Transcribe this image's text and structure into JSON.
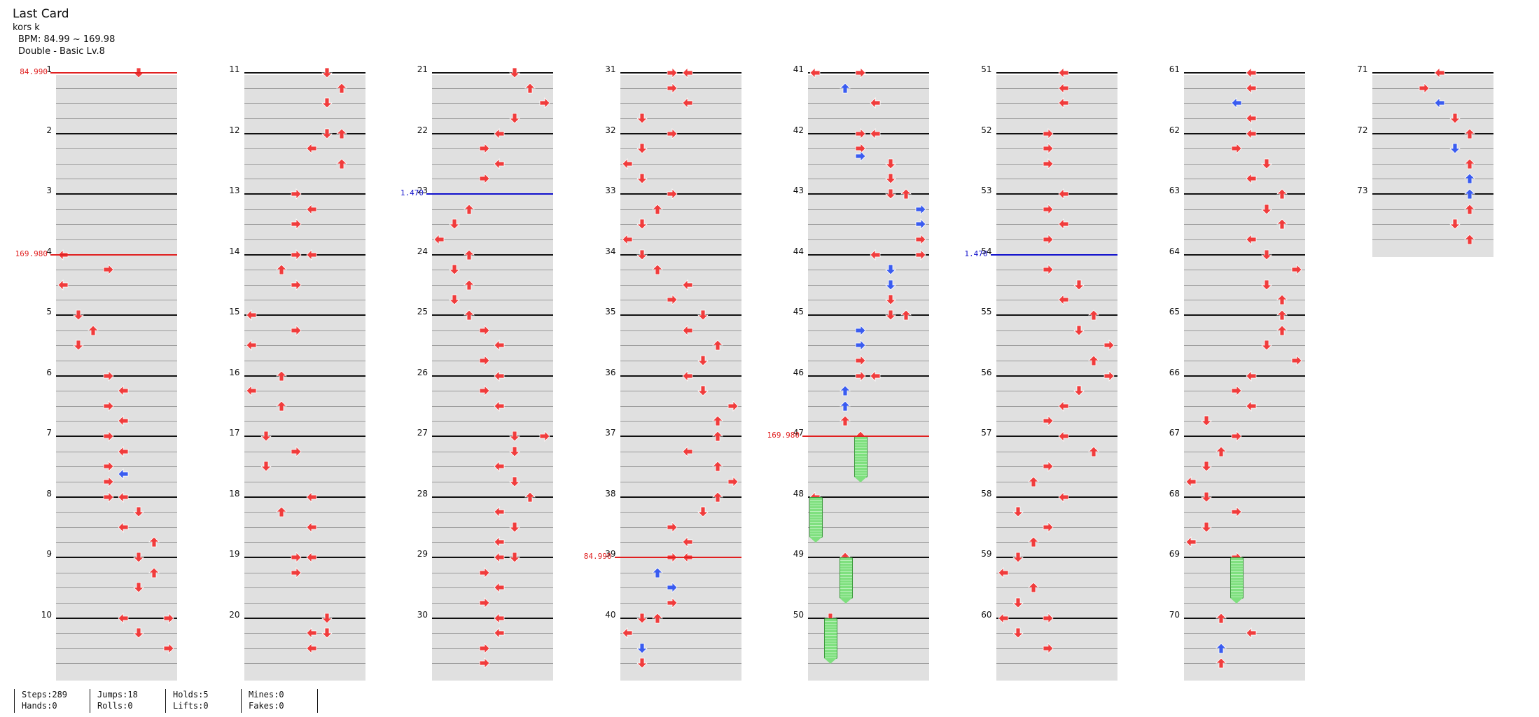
{
  "song": {
    "title": "Last Card",
    "artist": "kors k",
    "bpm": "BPM: 84.99 ~ 169.98",
    "chart": "Double - Basic  Lv.8"
  },
  "stats": [
    {
      "l1": "Steps:289",
      "l2": "Hands:0"
    },
    {
      "l1": "Jumps:18",
      "l2": "Rolls:0"
    },
    {
      "l1": "Holds:5",
      "l2": "Lifts:0"
    },
    {
      "l1": "Mines:0",
      "l2": "Fakes:0"
    }
  ],
  "columns": [
    {
      "start": 1,
      "count": 10
    },
    {
      "start": 11,
      "count": 10
    },
    {
      "start": 21,
      "count": 10
    },
    {
      "start": 31,
      "count": 10
    },
    {
      "start": 41,
      "count": 10
    },
    {
      "start": 51,
      "count": 10
    },
    {
      "start": 61,
      "count": 10
    },
    {
      "start": 71,
      "count": 3
    }
  ],
  "colors": {
    "red_arrow": "#f03c3c",
    "blue_arrow": "#3a5cf0",
    "hold": "#7fe07f",
    "bpm_red": "#e02020",
    "bpm_blue": "#1010cc"
  },
  "bpm_changes": [
    {
      "measure": 1,
      "value": "84.990",
      "color": "red"
    },
    {
      "measure": 4,
      "value": "169.980",
      "color": "red"
    },
    {
      "measure": 23,
      "value": "1.470",
      "color": "blue"
    },
    {
      "measure": 39,
      "value": "84.990",
      "color": "red"
    },
    {
      "measure": 47,
      "value": "169.980",
      "color": "red"
    },
    {
      "measure": 54,
      "value": "1.470",
      "color": "blue"
    }
  ],
  "notes": [
    [
      1,
      0,
      5,
      "d"
    ],
    [
      4,
      0,
      0,
      "l"
    ],
    [
      4,
      0.25,
      3,
      "r"
    ],
    [
      4,
      0.5,
      0,
      "l"
    ],
    [
      5,
      0,
      1,
      "d"
    ],
    [
      5,
      0.25,
      2,
      "u"
    ],
    [
      5,
      0.5,
      1,
      "d"
    ],
    [
      6,
      0,
      3,
      "r"
    ],
    [
      6,
      0.25,
      4,
      "l"
    ],
    [
      6,
      0.5,
      3,
      "r"
    ],
    [
      6,
      0.75,
      4,
      "l"
    ],
    [
      7,
      0,
      3,
      "r"
    ],
    [
      7,
      0.25,
      4,
      "l"
    ],
    [
      7,
      0.5,
      3,
      "r"
    ],
    [
      7,
      0.625,
      4,
      "l",
      "b"
    ],
    [
      7,
      0.75,
      3,
      "r"
    ],
    [
      8,
      0,
      3,
      "r"
    ],
    [
      8,
      0,
      4,
      "l"
    ],
    [
      8,
      0.25,
      5,
      "d"
    ],
    [
      8,
      0.5,
      4,
      "l"
    ],
    [
      8,
      0.75,
      6,
      "u"
    ],
    [
      9,
      0,
      5,
      "d"
    ],
    [
      9,
      0.25,
      6,
      "u"
    ],
    [
      9,
      0.5,
      5,
      "d"
    ],
    [
      10,
      0,
      4,
      "l"
    ],
    [
      10,
      0,
      7,
      "r"
    ],
    [
      10,
      0.25,
      5,
      "d"
    ],
    [
      10,
      0.5,
      7,
      "r"
    ],
    [
      11,
      0,
      5,
      "d"
    ],
    [
      11,
      0.25,
      6,
      "u"
    ],
    [
      11,
      0.5,
      5,
      "d"
    ],
    [
      12,
      0,
      5,
      "d"
    ],
    [
      12,
      0,
      6,
      "u"
    ],
    [
      12,
      0.25,
      4,
      "l"
    ],
    [
      12,
      0.5,
      6,
      "u"
    ],
    [
      13,
      0,
      3,
      "r"
    ],
    [
      13,
      0.25,
      4,
      "l"
    ],
    [
      13,
      0.5,
      3,
      "r"
    ],
    [
      14,
      0,
      3,
      "r"
    ],
    [
      14,
      0,
      4,
      "l"
    ],
    [
      14,
      0.25,
      2,
      "u"
    ],
    [
      14,
      0.5,
      3,
      "r"
    ],
    [
      15,
      0,
      0,
      "l"
    ],
    [
      15,
      0.25,
      3,
      "r"
    ],
    [
      15,
      0.5,
      0,
      "l"
    ],
    [
      16,
      0,
      2,
      "u"
    ],
    [
      16,
      0.25,
      0,
      "l"
    ],
    [
      16,
      0.5,
      2,
      "u"
    ],
    [
      17,
      0,
      1,
      "d"
    ],
    [
      17,
      0.25,
      3,
      "r"
    ],
    [
      17,
      0.5,
      1,
      "d"
    ],
    [
      18,
      0,
      4,
      "l"
    ],
    [
      18,
      0.25,
      2,
      "u"
    ],
    [
      18,
      0.5,
      4,
      "l"
    ],
    [
      19,
      0,
      3,
      "r"
    ],
    [
      19,
      0,
      4,
      "l"
    ],
    [
      19,
      0.25,
      3,
      "r"
    ],
    [
      20,
      0,
      5,
      "d"
    ],
    [
      20,
      0.25,
      4,
      "l"
    ],
    [
      20,
      0.5,
      4,
      "l"
    ],
    [
      20,
      0.25,
      5,
      "d"
    ],
    [
      21,
      0,
      5,
      "d"
    ],
    [
      21,
      0.25,
      6,
      "u"
    ],
    [
      21,
      0.5,
      7,
      "r"
    ],
    [
      21,
      0.75,
      5,
      "d"
    ],
    [
      22,
      0,
      4,
      "l"
    ],
    [
      22,
      0.25,
      3,
      "r"
    ],
    [
      22,
      0.5,
      4,
      "l"
    ],
    [
      22,
      0.75,
      3,
      "r"
    ],
    [
      23,
      0.25,
      2,
      "u"
    ],
    [
      23,
      0.5,
      1,
      "d"
    ],
    [
      23,
      0.75,
      0,
      "l"
    ],
    [
      24,
      0,
      2,
      "u"
    ],
    [
      24,
      0.25,
      1,
      "d"
    ],
    [
      24,
      0.5,
      2,
      "u"
    ],
    [
      24,
      0.75,
      1,
      "d"
    ],
    [
      25,
      0,
      2,
      "u"
    ],
    [
      25,
      0.25,
      3,
      "r"
    ],
    [
      25,
      0.5,
      4,
      "l"
    ],
    [
      25,
      0.75,
      3,
      "r"
    ],
    [
      26,
      0,
      4,
      "l"
    ],
    [
      26,
      0.25,
      3,
      "r"
    ],
    [
      26,
      0.5,
      4,
      "l"
    ],
    [
      27,
      0,
      5,
      "d"
    ],
    [
      27,
      0,
      7,
      "r"
    ],
    [
      27,
      0.25,
      5,
      "d"
    ],
    [
      27,
      0.5,
      4,
      "l"
    ],
    [
      27,
      0.75,
      5,
      "d"
    ],
    [
      28,
      0,
      6,
      "u"
    ],
    [
      28,
      0.25,
      4,
      "l"
    ],
    [
      28,
      0.5,
      5,
      "d"
    ],
    [
      28,
      0.75,
      4,
      "l"
    ],
    [
      29,
      0,
      5,
      "d"
    ],
    [
      29,
      0,
      4,
      "l"
    ],
    [
      29,
      0.25,
      3,
      "r"
    ],
    [
      29,
      0.5,
      4,
      "l"
    ],
    [
      29,
      0.75,
      3,
      "r"
    ],
    [
      30,
      0,
      4,
      "l"
    ],
    [
      30,
      0.25,
      4,
      "l"
    ],
    [
      30,
      0.5,
      3,
      "r"
    ],
    [
      30,
      0.75,
      3,
      "r"
    ],
    [
      31,
      0,
      3,
      "r"
    ],
    [
      31,
      0,
      4,
      "l"
    ],
    [
      31,
      0.25,
      3,
      "r"
    ],
    [
      31,
      0.5,
      4,
      "l"
    ],
    [
      31,
      0.75,
      1,
      "d"
    ],
    [
      32,
      0,
      3,
      "r"
    ],
    [
      32,
      0.25,
      1,
      "d"
    ],
    [
      32,
      0.5,
      0,
      "l"
    ],
    [
      32,
      0.75,
      1,
      "d"
    ],
    [
      33,
      0,
      3,
      "r"
    ],
    [
      33,
      0.25,
      2,
      "u"
    ],
    [
      33,
      0.5,
      1,
      "d"
    ],
    [
      33,
      0.75,
      0,
      "l"
    ],
    [
      34,
      0,
      1,
      "d"
    ],
    [
      34,
      0.25,
      2,
      "u"
    ],
    [
      34,
      0.5,
      4,
      "l",
      "b"
    ],
    [
      34,
      0.5,
      4,
      "l"
    ],
    [
      34,
      0.75,
      3,
      "r"
    ],
    [
      35,
      0,
      5,
      "d"
    ],
    [
      35,
      0.25,
      4,
      "l"
    ],
    [
      35,
      0.5,
      6,
      "u"
    ],
    [
      35,
      0.75,
      5,
      "d"
    ],
    [
      36,
      0,
      4,
      "l"
    ],
    [
      36,
      0.25,
      5,
      "d"
    ],
    [
      36,
      0.5,
      7,
      "r"
    ],
    [
      36,
      0.75,
      6,
      "u"
    ],
    [
      37,
      0,
      6,
      "u"
    ],
    [
      37,
      0.25,
      4,
      "l"
    ],
    [
      37,
      0.5,
      6,
      "u"
    ],
    [
      37,
      0.75,
      7,
      "r"
    ],
    [
      38,
      0,
      6,
      "u"
    ],
    [
      38,
      0.25,
      5,
      "d"
    ],
    [
      38,
      0.5,
      3,
      "r"
    ],
    [
      38,
      0.75,
      4,
      "l"
    ],
    [
      39,
      0,
      3,
      "r"
    ],
    [
      39,
      0,
      4,
      "l"
    ],
    [
      39,
      0.25,
      2,
      "u",
      "b"
    ],
    [
      39,
      0.5,
      3,
      "r",
      "b"
    ],
    [
      39,
      0.75,
      3,
      "r"
    ],
    [
      40,
      0,
      1,
      "d"
    ],
    [
      40,
      0,
      2,
      "u"
    ],
    [
      40,
      0.25,
      0,
      "l"
    ],
    [
      40,
      0.5,
      1,
      "d",
      "b"
    ],
    [
      40,
      0.75,
      1,
      "d"
    ],
    [
      41,
      0,
      0,
      "l"
    ],
    [
      41,
      0,
      3,
      "r"
    ],
    [
      41,
      0.25,
      2,
      "u",
      "b"
    ],
    [
      41,
      0.5,
      4,
      "l",
      "b"
    ],
    [
      41,
      0.5,
      4,
      "l"
    ],
    [
      42,
      0,
      3,
      "r"
    ],
    [
      42,
      0,
      4,
      "l"
    ],
    [
      42,
      0.25,
      3,
      "r"
    ],
    [
      42,
      0.375,
      3,
      "r",
      "b"
    ],
    [
      42,
      0.5,
      5,
      "d"
    ],
    [
      42,
      0.75,
      5,
      "d"
    ],
    [
      43,
      0,
      5,
      "d"
    ],
    [
      43,
      0,
      6,
      "u"
    ],
    [
      43,
      0.25,
      7,
      "r",
      "b"
    ],
    [
      43,
      0.5,
      7,
      "r",
      "b"
    ],
    [
      43,
      0.75,
      7,
      "r"
    ],
    [
      44,
      0,
      4,
      "l"
    ],
    [
      44,
      0,
      7,
      "r"
    ],
    [
      44,
      0.25,
      5,
      "d",
      "b"
    ],
    [
      44,
      0.5,
      5,
      "d",
      "b"
    ],
    [
      44,
      0.75,
      5,
      "d"
    ],
    [
      45,
      0,
      5,
      "d"
    ],
    [
      45,
      0,
      6,
      "u"
    ],
    [
      45,
      0.25,
      3,
      "r",
      "b"
    ],
    [
      45,
      0.5,
      3,
      "r",
      "b"
    ],
    [
      45,
      0.75,
      3,
      "r"
    ],
    [
      46,
      0,
      3,
      "r"
    ],
    [
      46,
      0,
      4,
      "l"
    ],
    [
      46,
      0.25,
      2,
      "u",
      "b"
    ],
    [
      46,
      0.5,
      2,
      "u",
      "b"
    ],
    [
      46,
      0.75,
      2,
      "u"
    ],
    [
      61,
      0,
      4,
      "l"
    ],
    [
      61,
      0.25,
      4,
      "l"
    ],
    [
      61,
      0.5,
      3,
      "l",
      "b"
    ],
    [
      61,
      0.75,
      4,
      "l"
    ],
    [
      62,
      0,
      4,
      "l"
    ],
    [
      62,
      0.25,
      3,
      "r"
    ],
    [
      62,
      0.5,
      5,
      "d"
    ],
    [
      62,
      0.75,
      4,
      "l"
    ],
    [
      63,
      0,
      6,
      "u"
    ],
    [
      63,
      0.25,
      5,
      "d"
    ],
    [
      63,
      0.5,
      6,
      "u"
    ],
    [
      63,
      0.75,
      4,
      "l"
    ],
    [
      64,
      0,
      5,
      "d"
    ],
    [
      64,
      0.25,
      7,
      "r"
    ],
    [
      64,
      0.5,
      5,
      "d"
    ],
    [
      64,
      0.75,
      6,
      "u"
    ],
    [
      65,
      0,
      6,
      "u"
    ],
    [
      65,
      0.25,
      6,
      "u"
    ],
    [
      65,
      0.5,
      5,
      "d"
    ],
    [
      65,
      0.75,
      7,
      "r"
    ],
    [
      66,
      0,
      4,
      "l"
    ],
    [
      66,
      0.25,
      3,
      "r"
    ],
    [
      66,
      0.5,
      4,
      "l"
    ],
    [
      66,
      0.75,
      1,
      "d"
    ],
    [
      67,
      0,
      3,
      "r"
    ],
    [
      67,
      0.25,
      2,
      "u"
    ],
    [
      67,
      0.5,
      1,
      "d"
    ],
    [
      67,
      0.75,
      0,
      "l"
    ],
    [
      68,
      0,
      1,
      "d"
    ],
    [
      68,
      0.25,
      3,
      "r"
    ],
    [
      68,
      0.5,
      1,
      "d"
    ],
    [
      68,
      0.75,
      0,
      "l"
    ],
    [
      70,
      0,
      2,
      "u"
    ],
    [
      70,
      0.25,
      4,
      "l"
    ],
    [
      70,
      0.5,
      2,
      "u",
      "b"
    ],
    [
      70,
      0.75,
      2,
      "u"
    ],
    [
      71,
      0,
      4,
      "l"
    ],
    [
      71,
      0.25,
      3,
      "r"
    ],
    [
      71,
      0.5,
      4,
      "l",
      "b"
    ],
    [
      71,
      0.75,
      5,
      "d"
    ],
    [
      72,
      0,
      6,
      "u"
    ],
    [
      72,
      0.25,
      5,
      "d",
      "b"
    ],
    [
      72,
      0.5,
      6,
      "u"
    ],
    [
      72,
      0.75,
      6,
      "u",
      "b"
    ],
    [
      73,
      0,
      6,
      "u",
      "b"
    ],
    [
      73,
      0.25,
      6,
      "u"
    ],
    [
      73,
      0.5,
      5,
      "d"
    ],
    [
      73,
      0.75,
      6,
      "u"
    ],
    [
      51,
      0,
      4,
      "l"
    ],
    [
      51,
      0.25,
      4,
      "l"
    ],
    [
      51,
      0.5,
      4,
      "l"
    ],
    [
      52,
      0,
      3,
      "r"
    ],
    [
      52,
      0.25,
      3,
      "r"
    ],
    [
      52,
      0.5,
      3,
      "r"
    ],
    [
      53,
      0,
      4,
      "l"
    ],
    [
      53,
      0.25,
      3,
      "r"
    ],
    [
      53,
      0.5,
      4,
      "l"
    ],
    [
      53,
      0.75,
      3,
      "r"
    ],
    [
      54,
      0.25,
      3,
      "r"
    ],
    [
      54,
      0.5,
      5,
      "d"
    ],
    [
      54,
      0.75,
      4,
      "l"
    ],
    [
      55,
      0,
      6,
      "u"
    ],
    [
      55,
      0.25,
      5,
      "d"
    ],
    [
      55,
      0.5,
      7,
      "r"
    ],
    [
      55,
      0.75,
      6,
      "u"
    ],
    [
      56,
      0,
      7,
      "r"
    ],
    [
      56,
      0.25,
      5,
      "d"
    ],
    [
      56,
      0.5,
      4,
      "l"
    ],
    [
      56,
      0.75,
      3,
      "r"
    ],
    [
      57,
      0,
      4,
      "l"
    ],
    [
      57,
      0.25,
      6,
      "u"
    ],
    [
      57,
      0.5,
      3,
      "r"
    ],
    [
      57,
      0.75,
      2,
      "u"
    ],
    [
      58,
      0,
      4,
      "l"
    ],
    [
      58,
      0.25,
      1,
      "d"
    ],
    [
      58,
      0.5,
      3,
      "r"
    ],
    [
      58,
      0.75,
      2,
      "u"
    ],
    [
      59,
      0,
      1,
      "d"
    ],
    [
      59,
      0.25,
      0,
      "l"
    ],
    [
      59,
      0.5,
      2,
      "u"
    ],
    [
      59,
      0.75,
      1,
      "d"
    ],
    [
      60,
      0,
      0,
      "l"
    ],
    [
      60,
      0.25,
      1,
      "d"
    ],
    [
      60,
      0.5,
      3,
      "r"
    ],
    [
      60,
      0.0,
      3,
      "r"
    ],
    [
      47,
      0,
      3,
      "u"
    ],
    [
      48,
      0,
      0,
      "l"
    ],
    [
      49,
      0,
      2,
      "u"
    ],
    [
      50,
      0,
      1,
      "d"
    ],
    [
      69,
      0,
      3,
      "r"
    ]
  ],
  "holds": [
    [
      47,
      0,
      3,
      0.75
    ],
    [
      48,
      0,
      0,
      0.75
    ],
    [
      49,
      0,
      2,
      0.75
    ],
    [
      50,
      0,
      1,
      0.75
    ],
    [
      69,
      0,
      3,
      0.75
    ]
  ]
}
